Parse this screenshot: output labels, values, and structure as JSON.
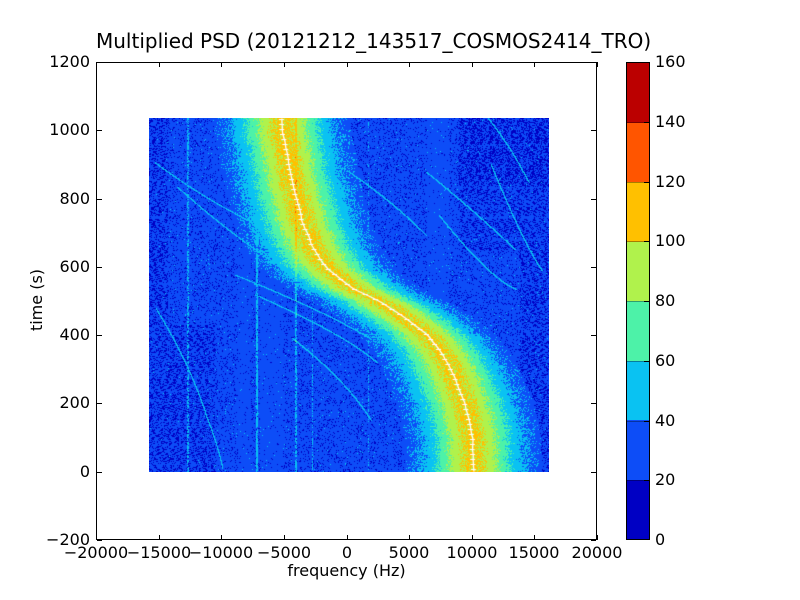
{
  "figure": {
    "title": "Multiplied PSD (20121212_143517_COSMOS2414_TRO)"
  },
  "axes": {
    "xlabel": "frequency (Hz)",
    "ylabel": "time (s)",
    "xlim": [
      -20000,
      20000
    ],
    "ylim": [
      -200,
      1200
    ],
    "xtick_values": [
      -20000,
      -15000,
      -10000,
      -5000,
      0,
      5000,
      10000,
      15000,
      20000
    ],
    "xtick_labels": [
      "−20000",
      "−15000",
      "−10000",
      "−5000",
      "0",
      "5000",
      "10000",
      "15000",
      "20000"
    ],
    "ytick_values": [
      -200,
      0,
      200,
      400,
      600,
      800,
      1000,
      1200
    ],
    "ytick_labels": [
      "−200",
      "0",
      "200",
      "400",
      "600",
      "800",
      "1000",
      "1200"
    ]
  },
  "colorbar": {
    "vmin": 0,
    "vmax": 160,
    "tick_values": [
      0,
      20,
      40,
      60,
      80,
      100,
      120,
      140,
      160
    ],
    "tick_labels": [
      "0",
      "20",
      "40",
      "60",
      "80",
      "100",
      "120",
      "140",
      "160"
    ],
    "segment_colors": [
      "#0000c4",
      "#0d4df7",
      "#0ac2f2",
      "#4df2a8",
      "#b0f24c",
      "#ffc000",
      "#ff5500",
      "#bb0000"
    ]
  },
  "chart_data": {
    "type": "heatmap",
    "title": "Multiplied PSD (20121212_143517_COSMOS2414_TRO)",
    "xlabel": "frequency (Hz)",
    "ylabel": "time (s)",
    "extent": {
      "f_min": -15770,
      "f_max": 16210,
      "t_min": 0,
      "t_max": 1035
    },
    "value_range": [
      0,
      160
    ],
    "level_step": 20,
    "background_value": 30,
    "band": {
      "peak_amplitude": 74,
      "sigma_hz": 2150,
      "core_color": "#ffffff"
    },
    "doppler_track": [
      [
        0,
        10300
      ],
      [
        100,
        10160
      ],
      [
        195,
        9600
      ],
      [
        270,
        8810
      ],
      [
        340,
        7780
      ],
      [
        400,
        6430
      ],
      [
        447,
        4840
      ],
      [
        497,
        2780
      ],
      [
        535,
        630
      ],
      [
        594,
        -1510
      ],
      [
        664,
        -2780
      ],
      [
        732,
        -3570
      ],
      [
        811,
        -4130
      ],
      [
        908,
        -4680
      ],
      [
        1000,
        -5050
      ],
      [
        1035,
        -5150
      ]
    ],
    "ghost_arcs": [
      [
        [
          -15300,
          905
        ],
        [
          -8100,
          710
        ],
        [
          -1600,
          652
        ]
      ],
      [
        [
          -13500,
          833
        ],
        [
          -6750,
          613
        ],
        [
          -1500,
          527
        ]
      ],
      [
        [
          -8900,
          576
        ],
        [
          -1500,
          466
        ],
        [
          2000,
          388
        ]
      ],
      [
        [
          -7300,
          518
        ],
        [
          0,
          400
        ],
        [
          2500,
          318
        ]
      ],
      [
        [
          -4300,
          390
        ],
        [
          0,
          268
        ],
        [
          2000,
          150
        ]
      ],
      [
        [
          -15240,
          478
        ],
        [
          -12600,
          320
        ],
        [
          -11270,
          172
        ]
      ],
      [
        [
          -11300,
          172
        ],
        [
          -10300,
          80
        ],
        [
          -9900,
          10
        ]
      ],
      [
        [
          80,
          882
        ],
        [
          3800,
          790
        ],
        [
          6430,
          692
        ]
      ],
      [
        [
          6430,
          878
        ],
        [
          10400,
          760
        ],
        [
          13570,
          650
        ]
      ],
      [
        [
          11620,
          900
        ],
        [
          14120,
          675
        ],
        [
          15720,
          588
        ]
      ],
      [
        [
          7480,
          750
        ],
        [
          11480,
          566
        ],
        [
          13640,
          534
        ]
      ],
      [
        [
          11400,
          1035
        ],
        [
          13300,
          947
        ],
        [
          14600,
          850
        ]
      ]
    ],
    "vertical_lines": [
      {
        "f": -12700,
        "value": 46,
        "density": 0.55
      },
      {
        "f": -7160,
        "value": 50,
        "density": 0.85
      },
      {
        "f": -2700,
        "value": 45,
        "density": 0.5
      },
      {
        "f": 1800,
        "value": 44,
        "density": 0.35
      }
    ],
    "boost_lines": [
      {
        "f": -4040,
        "add": 13
      }
    ],
    "dark_stripes": [
      [
        -8650,
        -7650
      ],
      [
        -6900,
        -5100
      ],
      [
        6500,
        8200
      ]
    ],
    "noise": {
      "base_value": 30,
      "speckle_prob": 0.13,
      "moat_halfwidth_hz": 5200,
      "dense_speckle_zone": {
        "t_min": 840,
        "f_min": 9000,
        "prob": 0.3
      }
    }
  }
}
